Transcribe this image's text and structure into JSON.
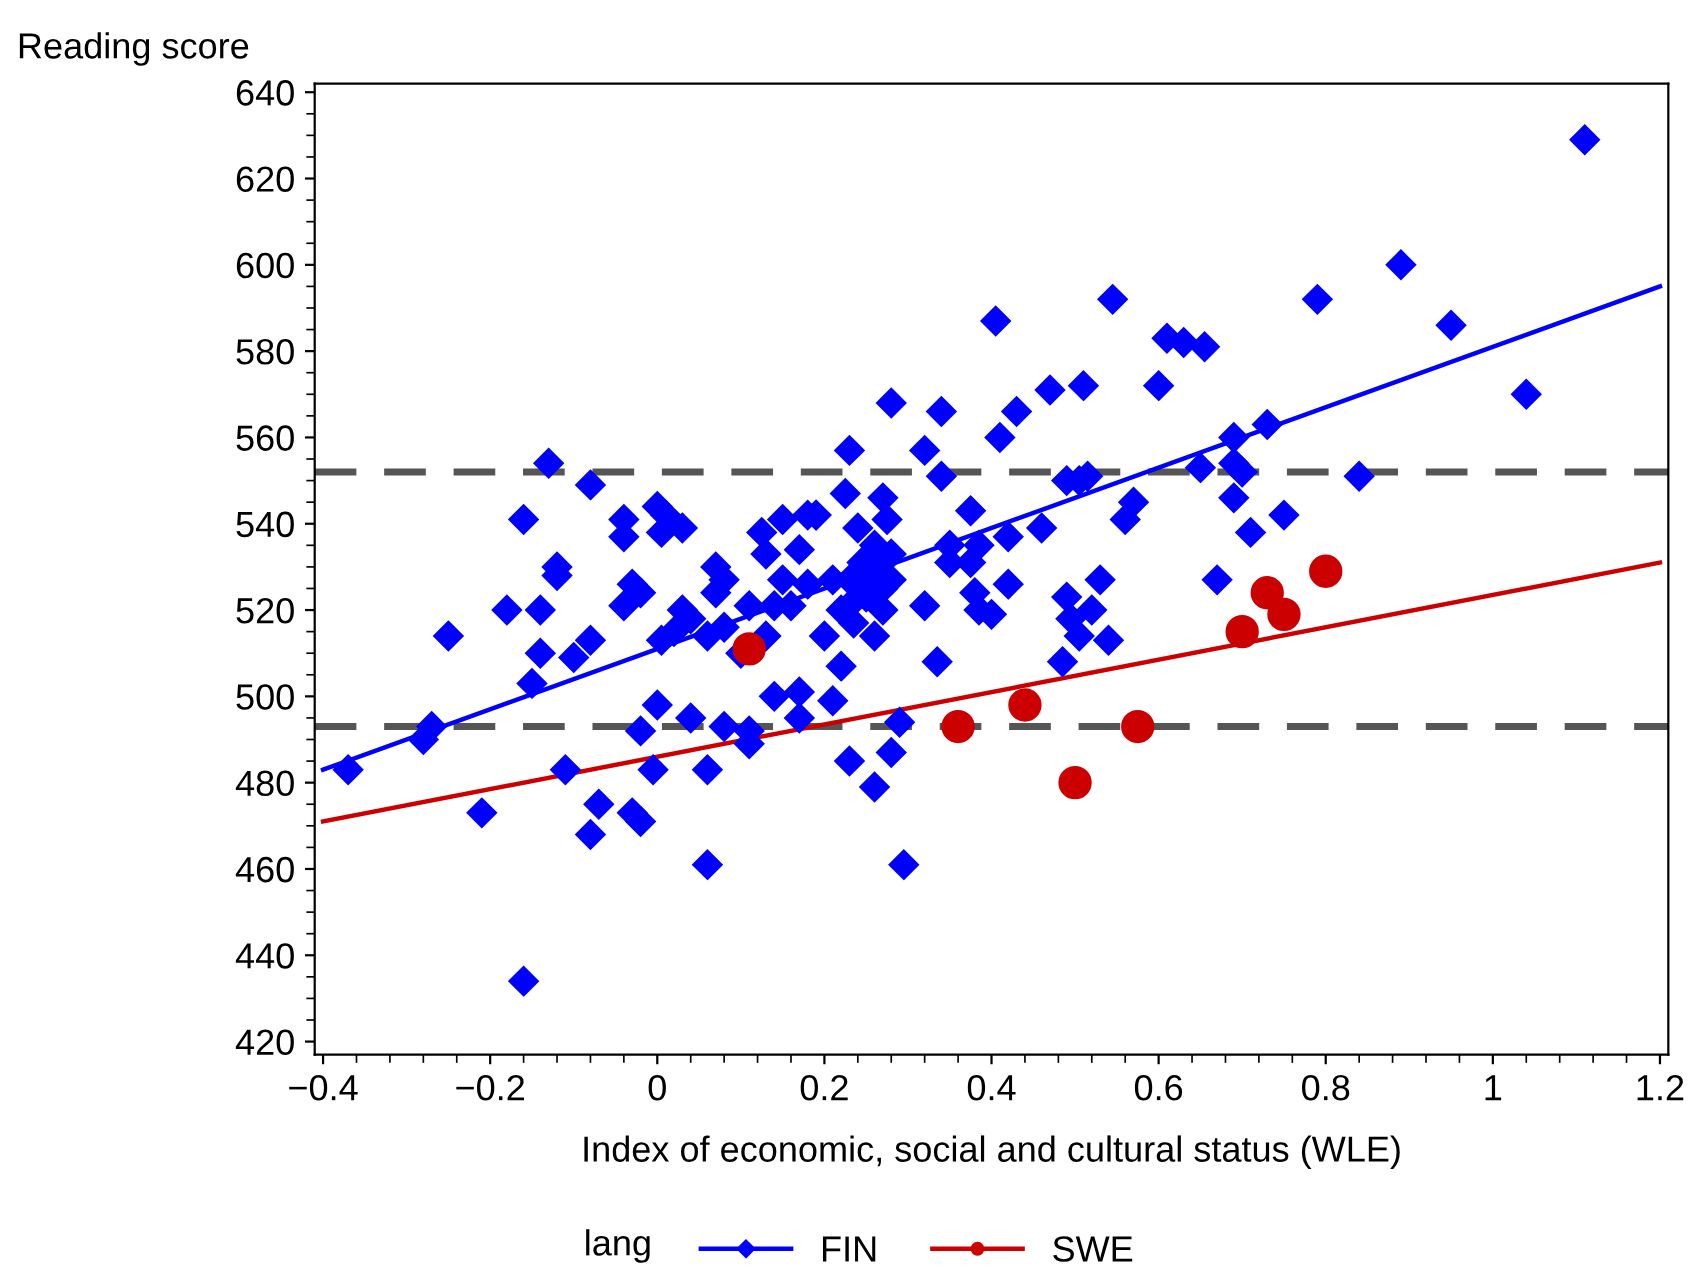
{
  "chart_data": {
    "type": "scatter",
    "ylabel": "Reading score",
    "xlabel": "Index of economic, social and cultural status (WLE)",
    "legend_title": "lang",
    "legend": "bottom",
    "grid": false,
    "xlim": [
      -0.41,
      1.21
    ],
    "ylim": [
      417,
      642
    ],
    "xticks": [
      {
        "value": -0.4,
        "label": "−0.4"
      },
      {
        "value": -0.2,
        "label": "−0.2"
      },
      0,
      0.2,
      0.4,
      0.6,
      0.8,
      1,
      1.2
    ],
    "yticks": [
      420,
      440,
      460,
      480,
      500,
      520,
      540,
      560,
      580,
      600,
      620,
      640
    ],
    "ref_lines": [
      {
        "axis": "y",
        "value": 552,
        "color": "#555555",
        "line_style": "dashed"
      },
      {
        "axis": "y",
        "value": 493,
        "color": "#555555",
        "line_style": "dashed"
      }
    ],
    "series": [
      {
        "name": "FIN",
        "marker": "diamond",
        "color": "#0000ff",
        "x": [
          -0.37,
          -0.28,
          -0.27,
          -0.25,
          -0.21,
          -0.18,
          -0.16,
          -0.16,
          -0.15,
          -0.14,
          -0.14,
          -0.13,
          -0.12,
          -0.12,
          -0.11,
          -0.1,
          -0.08,
          -0.08,
          -0.08,
          -0.07,
          -0.04,
          -0.04,
          -0.04,
          -0.03,
          -0.03,
          -0.02,
          -0.02,
          -0.02,
          -0.005,
          0.0,
          0.0,
          0.005,
          0.005,
          0.01,
          0.02,
          0.03,
          0.03,
          0.04,
          0.04,
          0.06,
          0.06,
          0.06,
          0.07,
          0.07,
          0.08,
          0.08,
          0.08,
          0.1,
          0.11,
          0.11,
          0.11,
          0.125,
          0.13,
          0.13,
          0.14,
          0.14,
          0.15,
          0.15,
          0.16,
          0.17,
          0.17,
          0.17,
          0.18,
          0.18,
          0.19,
          0.19,
          0.2,
          0.21,
          0.21,
          0.22,
          0.22,
          0.225,
          0.23,
          0.23,
          0.23,
          0.235,
          0.24,
          0.24,
          0.245,
          0.25,
          0.25,
          0.26,
          0.26,
          0.26,
          0.265,
          0.27,
          0.27,
          0.27,
          0.275,
          0.28,
          0.28,
          0.28,
          0.29,
          0.295,
          0.28,
          0.32,
          0.32,
          0.335,
          0.34,
          0.34,
          0.35,
          0.35,
          0.375,
          0.375,
          0.38,
          0.385,
          0.385,
          0.4,
          0.405,
          0.41,
          0.42,
          0.42,
          0.43,
          0.46,
          0.47,
          0.485,
          0.49,
          0.49,
          0.495,
          0.505,
          0.505,
          0.51,
          0.515,
          0.52,
          0.53,
          0.54,
          0.545,
          0.56,
          0.57,
          0.6,
          0.61,
          0.63,
          0.65,
          0.655,
          0.67,
          0.69,
          0.69,
          0.69,
          0.7,
          0.71,
          0.73,
          0.75,
          0.79,
          0.84,
          0.89,
          0.95,
          1.04,
          1.11
        ],
        "values": [
          483,
          490,
          493,
          514,
          473,
          520,
          541,
          434,
          503,
          510,
          520,
          554,
          528,
          530,
          483,
          509,
          468,
          549,
          513,
          475,
          537,
          541,
          521,
          526,
          473,
          492,
          524,
          471,
          483,
          544,
          498,
          513,
          538,
          542,
          515,
          520,
          539,
          495,
          518,
          461,
          483,
          514,
          524,
          530,
          516,
          527,
          493,
          510,
          492,
          489,
          521,
          538,
          533,
          514,
          500,
          521,
          527,
          541,
          521,
          495,
          501,
          534,
          542,
          526,
          542,
          542,
          514,
          499,
          527,
          507,
          520,
          547,
          485,
          557,
          527,
          517,
          523,
          539,
          531,
          527,
          523,
          535,
          479,
          514,
          531,
          525,
          520,
          546,
          541,
          533,
          568,
          527,
          494,
          461,
          487,
          521,
          557,
          508,
          566,
          551,
          535,
          531,
          531,
          543,
          524,
          520,
          535,
          519,
          587,
          560,
          526,
          537,
          566,
          539,
          571,
          508,
          550,
          523,
          518,
          514,
          550,
          572,
          551,
          520,
          527,
          513,
          592,
          541,
          545,
          572,
          583,
          582,
          553,
          581,
          527,
          554,
          546,
          560,
          552,
          538,
          563,
          542,
          592,
          551,
          600,
          586,
          570,
          629
        ]
      },
      {
        "name": "SWE",
        "marker": "circle",
        "color": "#cc0000",
        "x": [
          0.11,
          0.36,
          0.44,
          0.5,
          0.575,
          0.7,
          0.73,
          0.75,
          0.8
        ],
        "values": [
          511,
          493,
          498,
          480,
          493,
          515,
          524,
          519,
          529
        ]
      },
      {
        "type": "line",
        "color": "#0000ff",
        "x": [
          -0.4,
          1.2
        ],
        "values": [
          483,
          595
        ]
      },
      {
        "type": "line",
        "color": "#cc0000",
        "x": [
          -0.4,
          1.2
        ],
        "values": [
          471,
          531
        ]
      }
    ]
  }
}
